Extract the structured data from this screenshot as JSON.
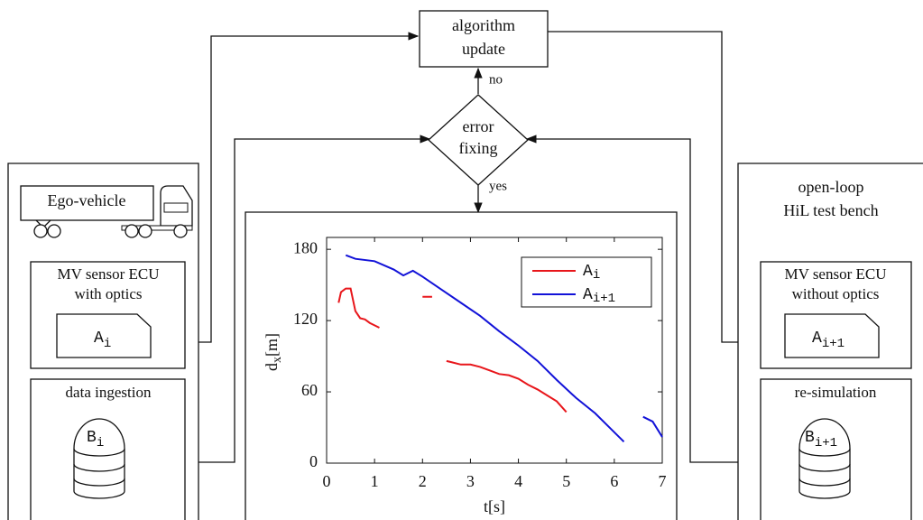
{
  "flow": {
    "update": [
      "algorithm",
      "update"
    ],
    "decision": [
      "error",
      "fixing"
    ],
    "no": "no",
    "yes": "yes"
  },
  "vehicle_side": {
    "vehicle": "Ego-vehicle",
    "ecu": [
      "MV sensor ECU",
      "with optics"
    ],
    "file": {
      "base": "A",
      "sub": "i"
    },
    "storage_title": "data ingestion",
    "storage": {
      "base": "B",
      "sub": "i"
    }
  },
  "bench_side": {
    "title": [
      "open-loop",
      "HiL test bench"
    ],
    "ecu": [
      "MV sensor ECU",
      "without optics"
    ],
    "file": {
      "base": "A",
      "sub": "i+1"
    },
    "storage_title": "re-simulation",
    "storage": {
      "base": "B",
      "sub": "i+1"
    }
  },
  "chart_data": {
    "type": "line",
    "x_label": "t[s]",
    "y_label": {
      "base": "d",
      "sub": "x",
      "unit": "[m]"
    },
    "xlim": [
      0,
      7
    ],
    "ylim": [
      0,
      190
    ],
    "xticks": [
      0,
      1,
      2,
      3,
      4,
      5,
      6,
      7
    ],
    "yticks": [
      0,
      60,
      120,
      180
    ],
    "legend": "upper right",
    "series": [
      {
        "name": {
          "base": "A",
          "sub": "i"
        },
        "color": "#e8161b",
        "x": [
          0.25,
          0.3,
          0.4,
          0.5,
          0.6,
          0.7,
          0.8,
          0.9,
          1.0,
          1.1,
          1.5,
          2.0,
          2.1,
          2.2,
          2.35,
          2.5,
          2.6,
          2.8,
          3.0,
          3.2,
          3.4,
          3.6,
          3.8,
          4.0,
          4.2,
          4.4,
          4.6,
          4.8,
          5.0
        ],
        "values": [
          135,
          144,
          147,
          147,
          128,
          122,
          121,
          118,
          116,
          114,
          null,
          140,
          140,
          140,
          null,
          86,
          85,
          83,
          83,
          81,
          78,
          75,
          74,
          71,
          66,
          62,
          57,
          52,
          43
        ]
      },
      {
        "name": {
          "base": "A",
          "sub": "i+1"
        },
        "color": "#1212d8",
        "x": [
          0.4,
          0.6,
          1.0,
          1.4,
          1.6,
          1.8,
          2.0,
          2.4,
          2.8,
          3.2,
          3.6,
          4.0,
          4.4,
          4.8,
          5.2,
          5.6,
          6.0,
          6.2,
          6.4,
          6.6,
          6.8,
          7.0
        ],
        "values": [
          175,
          172,
          170,
          163,
          158,
          162,
          157,
          146,
          135,
          124,
          111,
          99,
          86,
          70,
          55,
          42,
          26,
          18,
          null,
          39,
          35,
          22
        ]
      }
    ]
  }
}
